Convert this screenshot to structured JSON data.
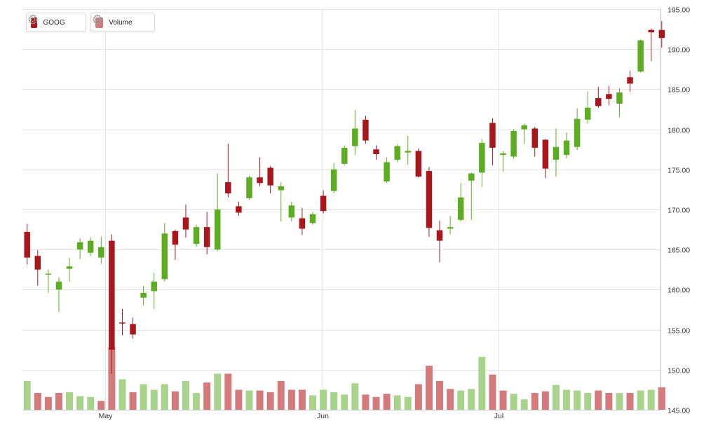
{
  "colors": {
    "up": "#5cad22",
    "down": "#a9161c",
    "vol_up": "#a7d48a",
    "vol_down": "#d47a7c",
    "grid": "#e3e3e3",
    "axis_text": "#333333"
  },
  "legend": [
    {
      "name": "GOOG",
      "color": "#a9161c",
      "icon": "gear-icon"
    },
    {
      "name": "Volume",
      "color": "#d47a7c",
      "icon": "gear-icon"
    }
  ],
  "chart_data": {
    "type": "candlestick",
    "ylim": [
      145,
      195
    ],
    "y_ticks": [
      "195.00",
      "190.00",
      "185.00",
      "180.00",
      "175.00",
      "170.00",
      "165.00",
      "160.00",
      "155.00",
      "150.00",
      "145.00"
    ],
    "x_labels": [
      {
        "label": "May",
        "index": 7.4
      },
      {
        "label": "Jun",
        "index": 27.9
      },
      {
        "label": "Jul",
        "index": 44.6
      }
    ],
    "ohlc": [
      {
        "o": 164.0,
        "h": 168.2,
        "l": 163.1,
        "c": 167.2,
        "dir": "down"
      },
      {
        "o": 162.5,
        "h": 164.9,
        "l": 160.5,
        "c": 164.2,
        "dir": "down"
      },
      {
        "o": 162.0,
        "h": 162.5,
        "l": 159.6,
        "c": 162.0,
        "dir": "up"
      },
      {
        "o": 160.0,
        "h": 161.5,
        "l": 157.2,
        "c": 161.0,
        "dir": "up"
      },
      {
        "o": 162.6,
        "h": 164.0,
        "l": 161.0,
        "c": 162.9,
        "dir": "up"
      },
      {
        "o": 165.0,
        "h": 166.4,
        "l": 163.8,
        "c": 165.9,
        "dir": "up"
      },
      {
        "o": 164.6,
        "h": 166.5,
        "l": 164.2,
        "c": 166.1,
        "dir": "up"
      },
      {
        "o": 164.0,
        "h": 166.6,
        "l": 163.2,
        "c": 165.3,
        "dir": "up"
      },
      {
        "o": 152.5,
        "h": 166.9,
        "l": 149.5,
        "c": 166.1,
        "dir": "down"
      },
      {
        "o": 155.8,
        "h": 157.6,
        "l": 154.3,
        "c": 155.9,
        "dir": "down"
      },
      {
        "o": 154.4,
        "h": 156.5,
        "l": 153.9,
        "c": 155.7,
        "dir": "down"
      },
      {
        "o": 159.0,
        "h": 160.5,
        "l": 158.0,
        "c": 159.6,
        "dir": "up"
      },
      {
        "o": 159.8,
        "h": 162.1,
        "l": 157.6,
        "c": 161.0,
        "dir": "up"
      },
      {
        "o": 161.3,
        "h": 168.3,
        "l": 161.0,
        "c": 167.0,
        "dir": "up"
      },
      {
        "o": 165.6,
        "h": 167.5,
        "l": 163.7,
        "c": 167.3,
        "dir": "down"
      },
      {
        "o": 167.5,
        "h": 170.6,
        "l": 166.5,
        "c": 169.0,
        "dir": "down"
      },
      {
        "o": 165.7,
        "h": 168.1,
        "l": 165.3,
        "c": 167.8,
        "dir": "up"
      },
      {
        "o": 165.3,
        "h": 169.7,
        "l": 164.4,
        "c": 167.8,
        "dir": "down"
      },
      {
        "o": 165.0,
        "h": 174.5,
        "l": 164.8,
        "c": 170.0,
        "dir": "up"
      },
      {
        "o": 172.0,
        "h": 178.2,
        "l": 171.5,
        "c": 173.4,
        "dir": "down"
      },
      {
        "o": 169.6,
        "h": 171.0,
        "l": 169.2,
        "c": 170.4,
        "dir": "down"
      },
      {
        "o": 171.4,
        "h": 174.2,
        "l": 171.2,
        "c": 174.0,
        "dir": "up"
      },
      {
        "o": 173.3,
        "h": 176.5,
        "l": 172.9,
        "c": 174.0,
        "dir": "down"
      },
      {
        "o": 173.0,
        "h": 175.4,
        "l": 172.0,
        "c": 175.2,
        "dir": "down"
      },
      {
        "o": 172.4,
        "h": 173.4,
        "l": 168.5,
        "c": 172.9,
        "dir": "up"
      },
      {
        "o": 169.0,
        "h": 171.0,
        "l": 168.5,
        "c": 170.5,
        "dir": "up"
      },
      {
        "o": 167.6,
        "h": 170.2,
        "l": 166.8,
        "c": 168.9,
        "dir": "down"
      },
      {
        "o": 168.3,
        "h": 169.7,
        "l": 168.1,
        "c": 169.4,
        "dir": "up"
      },
      {
        "o": 169.8,
        "h": 172.4,
        "l": 169.5,
        "c": 171.7,
        "dir": "down"
      },
      {
        "o": 172.3,
        "h": 175.8,
        "l": 172.0,
        "c": 175.0,
        "dir": "up"
      },
      {
        "o": 175.7,
        "h": 178.0,
        "l": 175.5,
        "c": 177.7,
        "dir": "up"
      },
      {
        "o": 177.9,
        "h": 182.4,
        "l": 176.8,
        "c": 180.1,
        "dir": "up"
      },
      {
        "o": 178.6,
        "h": 181.7,
        "l": 178.2,
        "c": 181.2,
        "dir": "down"
      },
      {
        "o": 176.9,
        "h": 178.0,
        "l": 176.2,
        "c": 177.5,
        "dir": "down"
      },
      {
        "o": 173.5,
        "h": 176.5,
        "l": 173.3,
        "c": 175.9,
        "dir": "up"
      },
      {
        "o": 176.2,
        "h": 178.1,
        "l": 175.9,
        "c": 177.9,
        "dir": "up"
      },
      {
        "o": 177.1,
        "h": 179.2,
        "l": 175.6,
        "c": 177.3,
        "dir": "up"
      },
      {
        "o": 174.1,
        "h": 177.6,
        "l": 174.0,
        "c": 177.3,
        "dir": "down"
      },
      {
        "o": 167.7,
        "h": 175.3,
        "l": 166.6,
        "c": 174.8,
        "dir": "down"
      },
      {
        "o": 166.1,
        "h": 168.6,
        "l": 163.4,
        "c": 167.4,
        "dir": "down"
      },
      {
        "o": 167.6,
        "h": 169.2,
        "l": 166.9,
        "c": 167.8,
        "dir": "up"
      },
      {
        "o": 168.7,
        "h": 173.3,
        "l": 168.5,
        "c": 171.5,
        "dir": "up"
      },
      {
        "o": 173.6,
        "h": 174.6,
        "l": 168.7,
        "c": 174.5,
        "dir": "up"
      },
      {
        "o": 174.6,
        "h": 178.8,
        "l": 172.8,
        "c": 178.3,
        "dir": "up"
      },
      {
        "o": 177.7,
        "h": 181.4,
        "l": 175.5,
        "c": 180.8,
        "dir": "down"
      },
      {
        "o": 176.8,
        "h": 177.3,
        "l": 174.7,
        "c": 177.0,
        "dir": "up"
      },
      {
        "o": 176.6,
        "h": 180.0,
        "l": 176.3,
        "c": 179.8,
        "dir": "up"
      },
      {
        "o": 180.0,
        "h": 180.7,
        "l": 178.2,
        "c": 180.5,
        "dir": "up"
      },
      {
        "o": 177.7,
        "h": 180.3,
        "l": 176.6,
        "c": 180.1,
        "dir": "down"
      },
      {
        "o": 175.1,
        "h": 178.8,
        "l": 173.9,
        "c": 178.7,
        "dir": "down"
      },
      {
        "o": 176.2,
        "h": 180.1,
        "l": 174.1,
        "c": 177.8,
        "dir": "up"
      },
      {
        "o": 176.8,
        "h": 179.6,
        "l": 176.4,
        "c": 178.6,
        "dir": "up"
      },
      {
        "o": 177.8,
        "h": 182.6,
        "l": 177.4,
        "c": 181.3,
        "dir": "up"
      },
      {
        "o": 181.2,
        "h": 184.7,
        "l": 180.7,
        "c": 182.7,
        "dir": "up"
      },
      {
        "o": 182.9,
        "h": 185.3,
        "l": 182.7,
        "c": 183.9,
        "dir": "down"
      },
      {
        "o": 183.8,
        "h": 185.4,
        "l": 183.0,
        "c": 184.4,
        "dir": "down"
      },
      {
        "o": 183.2,
        "h": 185.1,
        "l": 181.5,
        "c": 184.6,
        "dir": "up"
      },
      {
        "o": 185.7,
        "h": 187.3,
        "l": 184.7,
        "c": 186.5,
        "dir": "down"
      },
      {
        "o": 187.2,
        "h": 191.2,
        "l": 187.1,
        "c": 191.1,
        "dir": "up"
      },
      {
        "o": 192.1,
        "h": 192.6,
        "l": 188.5,
        "c": 192.4,
        "dir": "down"
      },
      {
        "o": 191.4,
        "h": 193.5,
        "l": 190.2,
        "c": 192.4,
        "dir": "down"
      }
    ],
    "volume": [
      {
        "v": 148.6,
        "dir": "up"
      },
      {
        "v": 147.1,
        "dir": "down"
      },
      {
        "v": 146.6,
        "dir": "down"
      },
      {
        "v": 147.1,
        "dir": "down"
      },
      {
        "v": 147.2,
        "dir": "up"
      },
      {
        "v": 146.7,
        "dir": "up"
      },
      {
        "v": 146.6,
        "dir": "up"
      },
      {
        "v": 146.1,
        "dir": "down"
      },
      {
        "v": 152.8,
        "dir": "down"
      },
      {
        "v": 148.8,
        "dir": "up"
      },
      {
        "v": 147.2,
        "dir": "down"
      },
      {
        "v": 148.2,
        "dir": "up"
      },
      {
        "v": 147.5,
        "dir": "up"
      },
      {
        "v": 148.2,
        "dir": "up"
      },
      {
        "v": 147.3,
        "dir": "down"
      },
      {
        "v": 148.6,
        "dir": "up"
      },
      {
        "v": 147.1,
        "dir": "up"
      },
      {
        "v": 148.4,
        "dir": "down"
      },
      {
        "v": 149.5,
        "dir": "up"
      },
      {
        "v": 149.5,
        "dir": "down"
      },
      {
        "v": 147.5,
        "dir": "down"
      },
      {
        "v": 147.4,
        "dir": "up"
      },
      {
        "v": 147.4,
        "dir": "down"
      },
      {
        "v": 147.2,
        "dir": "down"
      },
      {
        "v": 148.6,
        "dir": "down"
      },
      {
        "v": 147.5,
        "dir": "down"
      },
      {
        "v": 147.5,
        "dir": "down"
      },
      {
        "v": 146.8,
        "dir": "up"
      },
      {
        "v": 147.5,
        "dir": "up"
      },
      {
        "v": 147.2,
        "dir": "up"
      },
      {
        "v": 146.9,
        "dir": "up"
      },
      {
        "v": 148.3,
        "dir": "up"
      },
      {
        "v": 146.9,
        "dir": "down"
      },
      {
        "v": 146.6,
        "dir": "down"
      },
      {
        "v": 147.0,
        "dir": "down"
      },
      {
        "v": 146.8,
        "dir": "up"
      },
      {
        "v": 146.6,
        "dir": "up"
      },
      {
        "v": 148.2,
        "dir": "down"
      },
      {
        "v": 150.5,
        "dir": "down"
      },
      {
        "v": 148.6,
        "dir": "down"
      },
      {
        "v": 147.6,
        "dir": "down"
      },
      {
        "v": 147.4,
        "dir": "up"
      },
      {
        "v": 147.6,
        "dir": "up"
      },
      {
        "v": 151.6,
        "dir": "up"
      },
      {
        "v": 149.4,
        "dir": "down"
      },
      {
        "v": 147.4,
        "dir": "down"
      },
      {
        "v": 147.0,
        "dir": "up"
      },
      {
        "v": 146.3,
        "dir": "up"
      },
      {
        "v": 147.1,
        "dir": "down"
      },
      {
        "v": 147.3,
        "dir": "down"
      },
      {
        "v": 148.1,
        "dir": "up"
      },
      {
        "v": 147.5,
        "dir": "up"
      },
      {
        "v": 147.4,
        "dir": "up"
      },
      {
        "v": 147.1,
        "dir": "up"
      },
      {
        "v": 147.4,
        "dir": "down"
      },
      {
        "v": 147.1,
        "dir": "down"
      },
      {
        "v": 147.1,
        "dir": "up"
      },
      {
        "v": 147.1,
        "dir": "down"
      },
      {
        "v": 147.4,
        "dir": "up"
      },
      {
        "v": 147.5,
        "dir": "up"
      },
      {
        "v": 147.8,
        "dir": "down"
      }
    ]
  }
}
